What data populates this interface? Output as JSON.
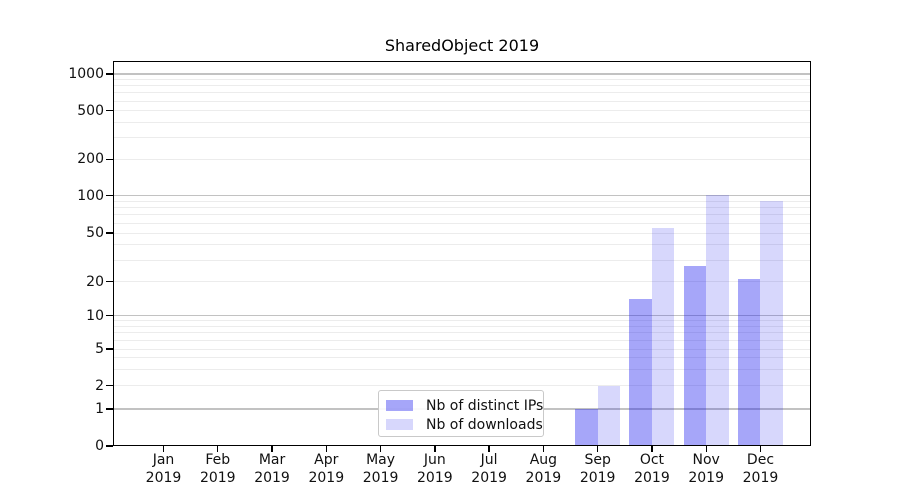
{
  "chart_data": {
    "type": "bar",
    "title": "SharedObject 2019",
    "x_categories": [
      "Jan",
      "Feb",
      "Mar",
      "Apr",
      "May",
      "Jun",
      "Jul",
      "Aug",
      "Sep",
      "Oct",
      "Nov",
      "Dec"
    ],
    "x_category_year": "2019",
    "series": [
      {
        "name": "Nb of distinct IPs",
        "color": "rgba(20,20,240,0.38)",
        "values": [
          0,
          0,
          0,
          0,
          0,
          0,
          0,
          0,
          1,
          14,
          27,
          21
        ]
      },
      {
        "name": "Nb of downloads",
        "color": "rgba(20,20,240,0.17)",
        "values": [
          0,
          0,
          0,
          0,
          0,
          0,
          0,
          0,
          2,
          55,
          102,
          90
        ]
      }
    ],
    "y_axis": {
      "scale": "symlog",
      "ticks": [
        0,
        1,
        2,
        5,
        10,
        20,
        50,
        100,
        200,
        500,
        1000
      ],
      "major_gridlines": [
        1,
        10,
        100,
        1000
      ],
      "minor_gridline_multiples": [
        2,
        3,
        4,
        5,
        6,
        7,
        8,
        9
      ],
      "minor_gridline_decades": [
        1,
        10,
        100
      ],
      "range": [
        0,
        1280
      ]
    },
    "xlabel": "",
    "ylabel": "",
    "grid": {
      "major_color": "#c2c2c2",
      "minor_color": "#ececec",
      "on": true
    },
    "legend": {
      "position": "lower center",
      "entries": [
        "Nb of distinct IPs",
        "Nb of downloads"
      ]
    },
    "colors": {
      "background": "#ffffff",
      "spine": "#000000",
      "text": "#111111"
    }
  }
}
